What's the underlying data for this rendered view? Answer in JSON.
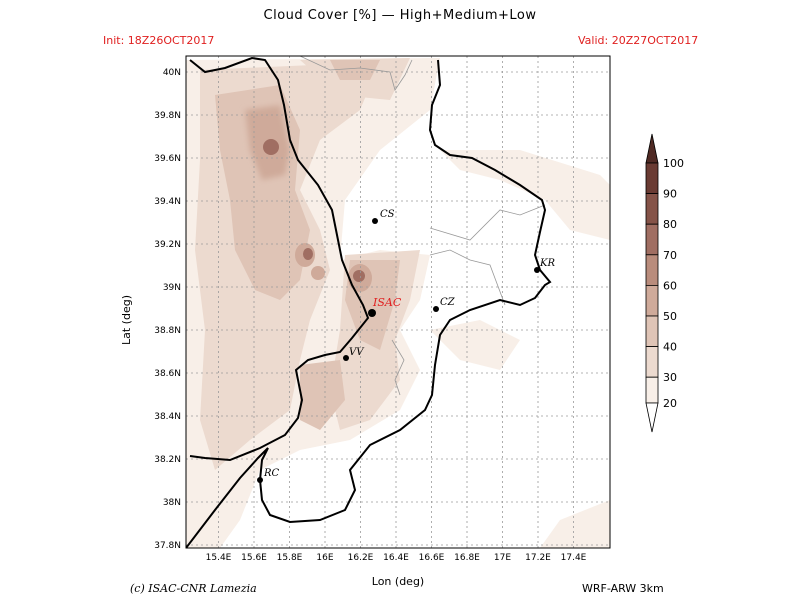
{
  "title": "Cloud Cover [%] — High+Medium+Low",
  "init": "Init: 18Z26OCT2017",
  "valid": "Valid: 20Z27OCT2017",
  "credit": "(c) ISAC-CNR Lamezia",
  "model": "WRF-ARW 3km",
  "axes": {
    "xlabel": "Lon (deg)",
    "ylabel": "Lat (deg)",
    "xticks": [
      "15.4E",
      "15.6E",
      "15.8E",
      "16E",
      "16.2E",
      "16.4E",
      "16.6E",
      "16.8E",
      "17E",
      "17.2E",
      "17.4E"
    ],
    "yticks": [
      "40N",
      "39.8N",
      "39.6N",
      "39.4N",
      "39.2N",
      "39N",
      "38.8N",
      "38.6N",
      "38.4N",
      "38.2N",
      "38N",
      "37.8N"
    ]
  },
  "colorbar": {
    "levels": [
      "20",
      "30",
      "40",
      "50",
      "60",
      "70",
      "80",
      "90",
      "100"
    ],
    "colors": [
      "#ffffff",
      "#f8efe8",
      "#ecdacf",
      "#dfc4b6",
      "#cfaa9a",
      "#b98c7c",
      "#a06e62",
      "#855348",
      "#6a3b33",
      "#4f2a24"
    ]
  },
  "places": [
    {
      "label": "CS",
      "color": "#000000"
    },
    {
      "label": "CZ",
      "color": "#000000"
    },
    {
      "label": "KR",
      "color": "#000000"
    },
    {
      "label": "ISAC",
      "color": "#e02020"
    },
    {
      "label": "VV",
      "color": "#000000"
    },
    {
      "label": "RC",
      "color": "#000000"
    }
  ]
}
